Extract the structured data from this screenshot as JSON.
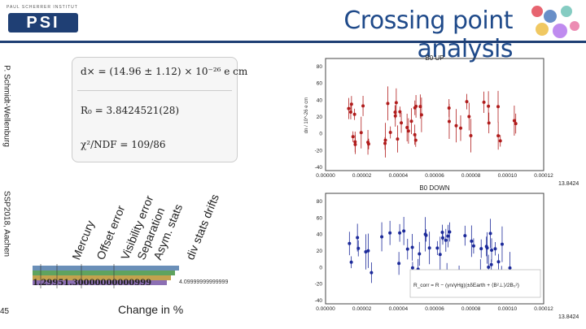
{
  "slide": {
    "title": "Crossing point analysis",
    "institute_line": "PAUL SCHERRER INSTITUT",
    "logo_text": "PSI",
    "author": "P. Schmidt-Wellenburg",
    "conference": "SSP2018, Aachen",
    "page_number": "45",
    "x_axis_label": "Change in %"
  },
  "formula": {
    "dx": "d× = (14.96 ± 1.12) × 10⁻²⁶ e cm",
    "r0": "R₀ = 3.8424521(28)",
    "chi2": "χ²/NDF = 109/86"
  },
  "error_sources": [
    "Mercury",
    "Offset error",
    "Visibility error",
    "Separation",
    "Asym. stats",
    "div stats drifts"
  ],
  "bar_values": {
    "left": "1.29951.30000000000999",
    "right": "4.09999999999999"
  },
  "plot_up": {
    "title": "B0 UP",
    "ylabel": "dn / 10^-26 e cm",
    "yticks": [
      "80",
      "60",
      "40",
      "20",
      "0",
      "-20",
      "-40"
    ],
    "xticks": [
      "0.00000",
      "0.00002",
      "0.00004",
      "0.00006",
      "0.00008",
      "0.00010",
      "0.00012"
    ],
    "corner_label": "13.8424",
    "color": "#b01c1c"
  },
  "plot_down": {
    "title": "B0 DOWN",
    "yticks": [
      "80",
      "60",
      "40",
      "20",
      "0",
      "-20",
      "-40"
    ],
    "xticks": [
      "0.00000",
      "0.00002",
      "0.00004",
      "0.00006",
      "0.00008",
      "0.00010",
      "0.00012"
    ],
    "corner_label": "13.8424",
    "color": "#1c2a9a",
    "formula": "R_corr = R − (γn/γHg)(±δEarth + ⟨B²⊥⟩/2B₀²)"
  }
}
